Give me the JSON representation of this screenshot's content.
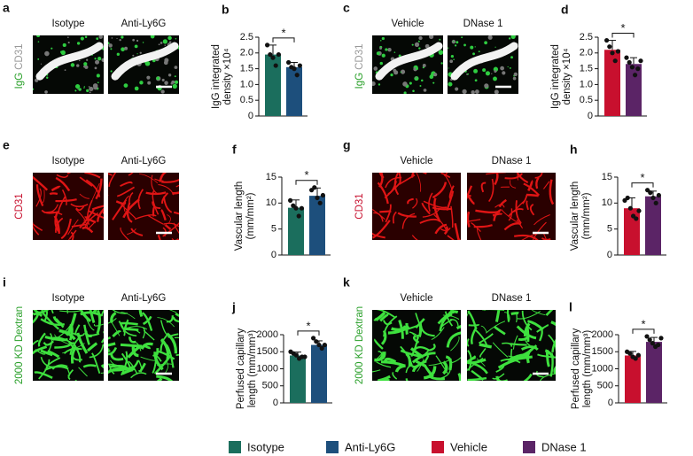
{
  "panels": [
    {
      "letter": "a",
      "side_label": [
        "IgG",
        "CD31"
      ],
      "labels": [
        "Isotype",
        "Anti-Ly6G"
      ]
    },
    {
      "letter": "c",
      "side_label": [
        "IgG",
        "CD31"
      ],
      "labels": [
        "Vehicle",
        "DNase 1"
      ]
    },
    {
      "letter": "e",
      "side_label": [
        "CD31"
      ],
      "labels": [
        "Isotype",
        "Anti-Ly6G"
      ]
    },
    {
      "letter": "g",
      "side_label": [
        "CD31"
      ],
      "labels": [
        "Vehicle",
        "DNase 1"
      ]
    },
    {
      "letter": "i",
      "side_label": [
        "2000 KD Dextran"
      ],
      "labels": [
        "Isotype",
        "Anti-Ly6G"
      ]
    },
    {
      "letter": "k",
      "side_label": [
        "2000 KD Dextran"
      ],
      "labels": [
        "Vehicle",
        "DNase 1"
      ]
    }
  ],
  "chart_data": [
    {
      "type": "bar",
      "panel": "b",
      "ylabel": [
        "IgG integrated",
        "density ×10⁴"
      ],
      "values": [
        1.95,
        1.55
      ],
      "errors": [
        0.3,
        0.15
      ],
      "colors": [
        "#1b6e5d",
        "#1d4f7c"
      ],
      "points": [
        [
          2.25,
          1.95,
          1.85,
          1.6,
          1.95
        ],
        [
          1.7,
          1.55,
          1.5,
          1.3,
          1.6
        ]
      ],
      "ylim": [
        0,
        2.5
      ],
      "yticks": [
        0,
        0.5,
        {
          "value": 1,
          "label": "1.0"
        },
        1.5,
        {
          "value": 2,
          "label": "2.0"
        },
        2.5
      ],
      "significance": "*"
    },
    {
      "type": "bar",
      "panel": "d",
      "ylabel": [
        "IgG integrated",
        "density ×10⁴"
      ],
      "values": [
        2.1,
        1.65
      ],
      "errors": [
        0.3,
        0.2
      ],
      "colors": [
        "#c8102e",
        "#5b2466"
      ],
      "points": [
        [
          2.4,
          2.2,
          2.0,
          1.75,
          2.05
        ],
        [
          1.85,
          1.7,
          1.55,
          1.3,
          1.5,
          1.75
        ]
      ],
      "ylim": [
        0,
        2.5
      ],
      "yticks": [
        0,
        0.5,
        {
          "value": 1,
          "label": "1.0"
        },
        1.5,
        {
          "value": 2,
          "label": "2.0"
        },
        2.5
      ],
      "significance": "*"
    },
    {
      "type": "bar",
      "panel": "f",
      "ylabel": [
        "Vascular length",
        "(mm/mm²)"
      ],
      "values": [
        9.1,
        11.4
      ],
      "errors": [
        1.5,
        1.5
      ],
      "colors": [
        "#1b6e5d",
        "#1d4f7c"
      ],
      "points": [
        [
          10.5,
          9.5,
          9,
          7.5,
          9
        ],
        [
          12.5,
          13,
          11,
          10,
          11.5
        ]
      ],
      "ylim": [
        0,
        15
      ],
      "yticks": [
        0,
        5,
        10,
        15
      ],
      "significance": "*"
    },
    {
      "type": "bar",
      "panel": "h",
      "ylabel": [
        "Vascular length",
        "(mm/mm²)"
      ],
      "values": [
        9.0,
        11.3
      ],
      "errors": [
        2,
        1
      ],
      "colors": [
        "#c8102e",
        "#5b2466"
      ],
      "points": [
        [
          10.5,
          11,
          9,
          7.5,
          7,
          8.5
        ],
        [
          12.5,
          12,
          11,
          10,
          11.5
        ]
      ],
      "ylim": [
        0,
        15
      ],
      "yticks": [
        0,
        5,
        10,
        15
      ],
      "significance": "*"
    },
    {
      "type": "bar",
      "panel": "j",
      "ylabel": [
        "Perfused capillary",
        "length (mm/mm³)"
      ],
      "values": [
        1390,
        1700
      ],
      "errors": [
        100,
        120
      ],
      "colors": [
        "#1b6e5d",
        "#1d4f7c"
      ],
      "points": [
        [
          1500,
          1450,
          1400,
          1300,
          1350,
          1350
        ],
        [
          1900,
          1800,
          1700,
          1600,
          1700
        ]
      ],
      "ylim": [
        0,
        2000
      ],
      "yticks": [
        0,
        500,
        1000,
        1500,
        2000
      ],
      "significance": "*"
    },
    {
      "type": "bar",
      "panel": "l",
      "ylabel": [
        "Perfused capillary",
        "length (mm/mm³)"
      ],
      "values": [
        1390,
        1790
      ],
      "errors": [
        120,
        130
      ],
      "colors": [
        "#c8102e",
        "#5b2466"
      ],
      "points": [
        [
          1500,
          1450,
          1350,
          1300,
          1400
        ],
        [
          1950,
          1850,
          1750,
          1650,
          1700,
          1900
        ]
      ],
      "ylim": [
        0,
        2000
      ],
      "yticks": [
        0,
        500,
        1000,
        1500,
        2000
      ],
      "significance": "*"
    }
  ],
  "legend": [
    {
      "name": "Isotype",
      "color": "#1b6e5d"
    },
    {
      "name": "Anti-Ly6G",
      "color": "#1d4f7c"
    },
    {
      "name": "Vehicle",
      "color": "#c8102e"
    },
    {
      "name": "DNase 1",
      "color": "#5b2466"
    }
  ]
}
